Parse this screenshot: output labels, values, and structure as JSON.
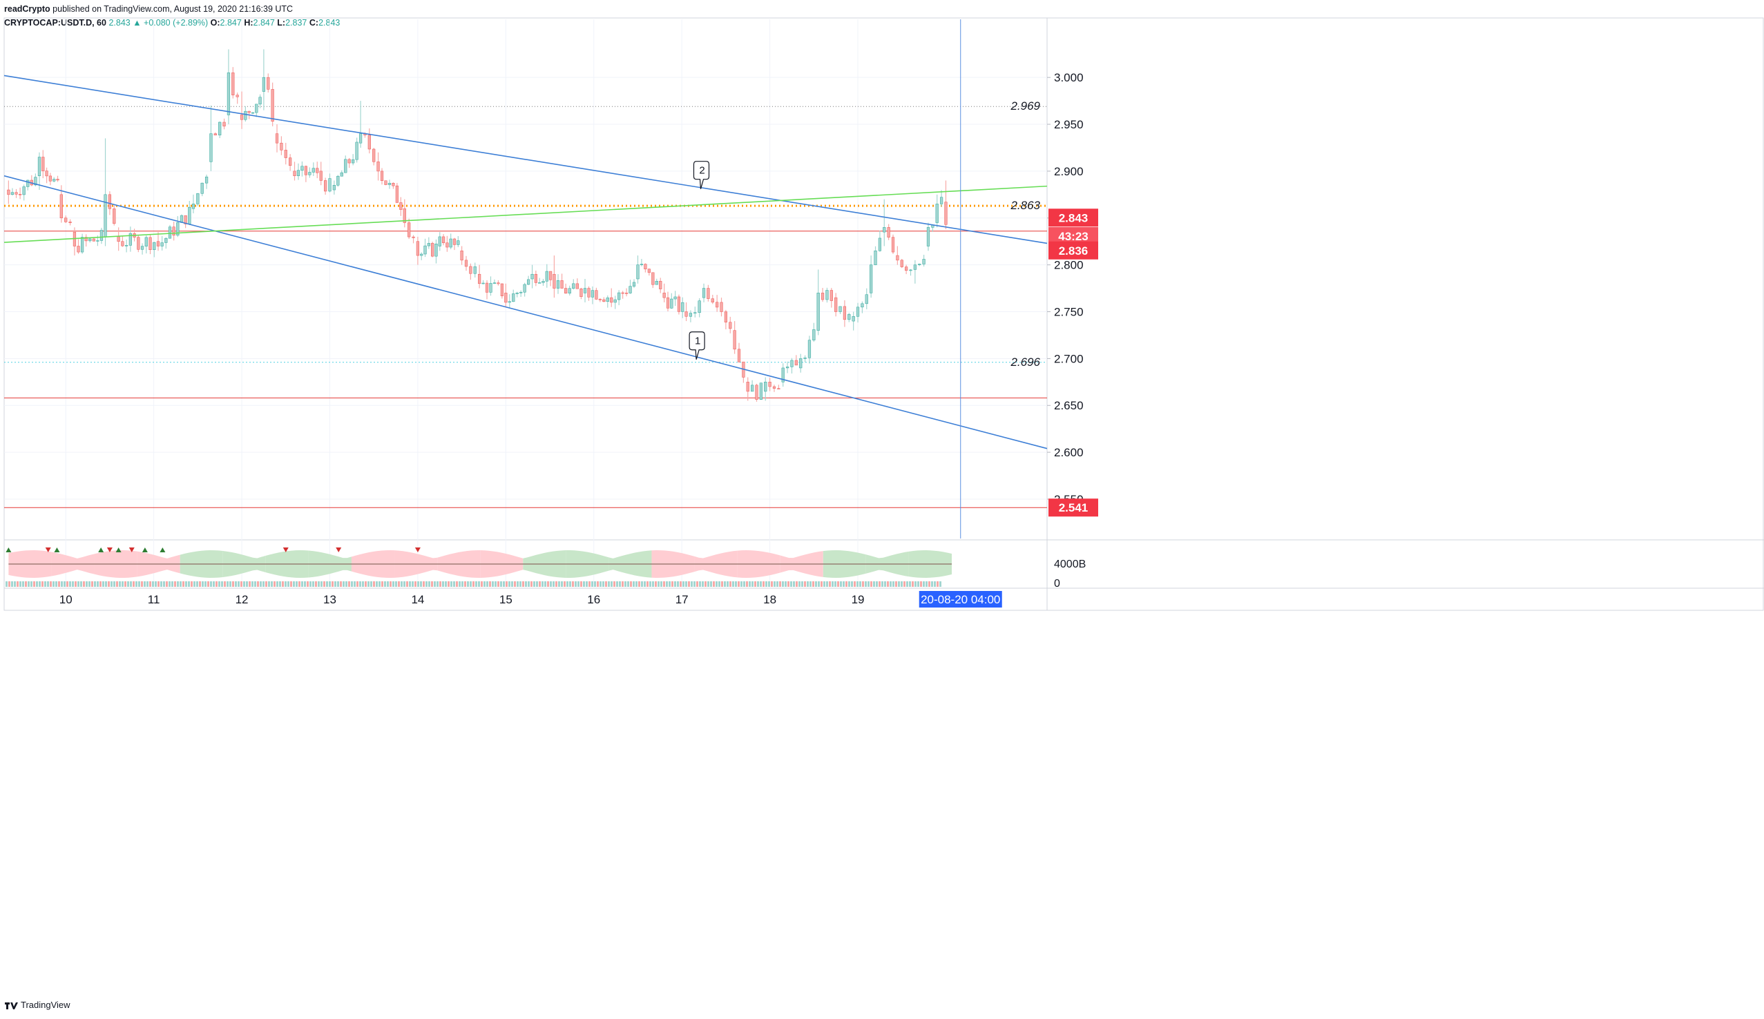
{
  "header": {
    "publisher_line_1": "readCrypto",
    "publisher_line_2": " published on TradingView.com, August 19, 2020 21:16:39 UTC",
    "symbol": "CRYPTOCAP:USDT.D, 60",
    "last": "2.843",
    "change": "▲ +0.080 (+2.89%)",
    "o_label": "O:",
    "o": "2.847",
    "h_label": "H:",
    "h": "2.847",
    "l_label": "L:",
    "l": "2.837",
    "c_label": "C:",
    "c": "2.843"
  },
  "footer": {
    "brand": "TradingView"
  },
  "colors": {
    "up": "#26a69a",
    "up_fill": "#a3d6d1",
    "down": "#ef5350",
    "down_fill": "#f7a9a7",
    "trend_blue": "#3d7fd6",
    "trend_green": "#66dd55",
    "red_line": "#e53935",
    "orange_dots": "#ff9800",
    "cyan_dots": "#4dd0e1",
    "grid": "#f0f3fa",
    "axis_text": "#131722",
    "label_red": "#f23645",
    "cursor_label": "#2962ff"
  },
  "chart_data": {
    "type": "candlestick",
    "title": "",
    "symbol": "CRYPTOCAP:USDT.D",
    "timeframe": "60",
    "ylim": [
      2.508,
      3.062
    ],
    "y_ticks": [
      2.55,
      2.6,
      2.65,
      2.7,
      2.75,
      2.8,
      2.85,
      2.9,
      2.95,
      3.0
    ],
    "y_tick_labels": [
      "2.550",
      "2.600",
      "2.650",
      "2.700",
      "2.750",
      "2.800",
      "2.850",
      "2.900",
      "2.950",
      "3.000"
    ],
    "x_ticks": [
      10,
      11,
      12,
      13,
      14,
      15,
      16,
      17,
      18,
      19
    ],
    "x_tick_labels": [
      "10",
      "11",
      "12",
      "13",
      "14",
      "15",
      "16",
      "17",
      "18",
      "19"
    ],
    "xlim": [
      9.3,
      21.15
    ],
    "cursor": {
      "x": 20.167,
      "label": "20-08-20   04:00"
    },
    "price_labels": [
      {
        "value": 2.843,
        "text": "2.843",
        "kind": "last"
      },
      {
        "value": 2.8395,
        "text": "43:23",
        "kind": "timer"
      },
      {
        "value": 2.836,
        "text": "2.836",
        "kind": "line"
      },
      {
        "value": 2.541,
        "text": "2.541",
        "kind": "line"
      }
    ],
    "horizontal_lines": [
      {
        "value": 2.969,
        "text": "2.969",
        "style": "dotted-gray"
      },
      {
        "value": 2.863,
        "text": "2.863",
        "style": "dotted-orange"
      },
      {
        "value": 2.836,
        "text": "",
        "style": "solid-red"
      },
      {
        "value": 2.696,
        "text": "2.696",
        "style": "dotted-cyan"
      },
      {
        "value": 2.658,
        "text": "",
        "style": "solid-red"
      },
      {
        "value": 2.541,
        "text": "",
        "style": "solid-red"
      }
    ],
    "trend_lines": [
      {
        "color": "blue",
        "x1": 9.3,
        "y1": 3.002,
        "x2": 21.15,
        "y2": 2.823
      },
      {
        "color": "blue",
        "x1": 9.3,
        "y1": 2.895,
        "x2": 21.15,
        "y2": 2.604
      },
      {
        "color": "green",
        "x1": 9.3,
        "y1": 2.824,
        "x2": 21.15,
        "y2": 2.884
      }
    ],
    "callouts": [
      {
        "text": "2",
        "x": 17.23,
        "y": 2.881
      },
      {
        "text": "1",
        "x": 17.18,
        "y": 2.699
      }
    ],
    "key_candles": [
      {
        "x": 9.35,
        "o": 2.88,
        "h": 2.89,
        "l": 2.865,
        "c": 2.875
      },
      {
        "x": 9.7,
        "o": 2.895,
        "h": 2.92,
        "l": 2.88,
        "c": 2.915
      },
      {
        "x": 9.95,
        "o": 2.875,
        "h": 2.885,
        "l": 2.845,
        "c": 2.85
      },
      {
        "x": 10.1,
        "o": 2.835,
        "h": 2.84,
        "l": 2.81,
        "c": 2.82
      },
      {
        "x": 10.45,
        "o": 2.83,
        "h": 2.935,
        "l": 2.82,
        "c": 2.875
      },
      {
        "x": 10.6,
        "o": 2.83,
        "h": 2.84,
        "l": 2.815,
        "c": 2.825
      },
      {
        "x": 11.05,
        "o": 2.825,
        "h": 2.835,
        "l": 2.815,
        "c": 2.82
      },
      {
        "x": 11.45,
        "o": 2.86,
        "h": 2.875,
        "l": 2.855,
        "c": 2.865
      },
      {
        "x": 11.65,
        "o": 2.91,
        "h": 2.97,
        "l": 2.9,
        "c": 2.94
      },
      {
        "x": 11.85,
        "o": 2.96,
        "h": 3.03,
        "l": 2.95,
        "c": 3.005
      },
      {
        "x": 12.0,
        "o": 2.96,
        "h": 2.985,
        "l": 2.945,
        "c": 2.955
      },
      {
        "x": 12.25,
        "o": 2.985,
        "h": 3.03,
        "l": 2.965,
        "c": 3.0
      },
      {
        "x": 12.4,
        "o": 2.94,
        "h": 2.95,
        "l": 2.92,
        "c": 2.93
      },
      {
        "x": 12.6,
        "o": 2.9,
        "h": 2.91,
        "l": 2.89,
        "c": 2.895
      },
      {
        "x": 12.9,
        "o": 2.9,
        "h": 2.91,
        "l": 2.885,
        "c": 2.89
      },
      {
        "x": 13.05,
        "o": 2.88,
        "h": 2.89,
        "l": 2.875,
        "c": 2.885
      },
      {
        "x": 13.35,
        "o": 2.93,
        "h": 2.975,
        "l": 2.925,
        "c": 2.94
      },
      {
        "x": 13.55,
        "o": 2.91,
        "h": 2.92,
        "l": 2.89,
        "c": 2.9
      },
      {
        "x": 13.85,
        "o": 2.86,
        "h": 2.87,
        "l": 2.84,
        "c": 2.845
      },
      {
        "x": 14.0,
        "o": 2.825,
        "h": 2.83,
        "l": 2.8,
        "c": 2.81
      },
      {
        "x": 14.25,
        "o": 2.82,
        "h": 2.835,
        "l": 2.815,
        "c": 2.83
      },
      {
        "x": 14.5,
        "o": 2.815,
        "h": 2.82,
        "l": 2.8,
        "c": 2.805
      },
      {
        "x": 14.7,
        "o": 2.79,
        "h": 2.8,
        "l": 2.775,
        "c": 2.78
      },
      {
        "x": 15.0,
        "o": 2.77,
        "h": 2.78,
        "l": 2.755,
        "c": 2.76
      },
      {
        "x": 15.3,
        "o": 2.785,
        "h": 2.8,
        "l": 2.775,
        "c": 2.79
      },
      {
        "x": 15.55,
        "o": 2.79,
        "h": 2.81,
        "l": 2.765,
        "c": 2.775
      },
      {
        "x": 15.9,
        "o": 2.77,
        "h": 2.785,
        "l": 2.76,
        "c": 2.775
      },
      {
        "x": 16.2,
        "o": 2.765,
        "h": 2.775,
        "l": 2.755,
        "c": 2.76
      },
      {
        "x": 16.5,
        "o": 2.785,
        "h": 2.81,
        "l": 2.78,
        "c": 2.8
      },
      {
        "x": 16.8,
        "o": 2.77,
        "h": 2.78,
        "l": 2.76,
        "c": 2.765
      },
      {
        "x": 17.05,
        "o": 2.75,
        "h": 2.76,
        "l": 2.74,
        "c": 2.745
      },
      {
        "x": 17.25,
        "o": 2.765,
        "h": 2.78,
        "l": 2.76,
        "c": 2.775
      },
      {
        "x": 17.45,
        "o": 2.76,
        "h": 2.765,
        "l": 2.745,
        "c": 2.75
      },
      {
        "x": 17.6,
        "o": 2.73,
        "h": 2.74,
        "l": 2.705,
        "c": 2.71
      },
      {
        "x": 17.75,
        "o": 2.675,
        "h": 2.68,
        "l": 2.655,
        "c": 2.665
      },
      {
        "x": 17.95,
        "o": 2.665,
        "h": 2.68,
        "l": 2.655,
        "c": 2.675
      },
      {
        "x": 18.15,
        "o": 2.675,
        "h": 2.695,
        "l": 2.67,
        "c": 2.69
      },
      {
        "x": 18.35,
        "o": 2.69,
        "h": 2.705,
        "l": 2.685,
        "c": 2.7
      },
      {
        "x": 18.55,
        "o": 2.73,
        "h": 2.795,
        "l": 2.725,
        "c": 2.77
      },
      {
        "x": 18.75,
        "o": 2.765,
        "h": 2.77,
        "l": 2.745,
        "c": 2.75
      },
      {
        "x": 18.95,
        "o": 2.74,
        "h": 2.75,
        "l": 2.73,
        "c": 2.745
      },
      {
        "x": 19.15,
        "o": 2.77,
        "h": 2.81,
        "l": 2.765,
        "c": 2.8
      },
      {
        "x": 19.3,
        "o": 2.835,
        "h": 2.87,
        "l": 2.82,
        "c": 2.84
      },
      {
        "x": 19.45,
        "o": 2.81,
        "h": 2.82,
        "l": 2.8,
        "c": 2.805
      },
      {
        "x": 19.65,
        "o": 2.795,
        "h": 2.805,
        "l": 2.78,
        "c": 2.8
      },
      {
        "x": 19.8,
        "o": 2.82,
        "h": 2.845,
        "l": 2.815,
        "c": 2.84
      },
      {
        "x": 19.9,
        "o": 2.845,
        "h": 2.875,
        "l": 2.84,
        "c": 2.865
      },
      {
        "x": 20.0,
        "o": 2.867,
        "h": 2.89,
        "l": 2.838,
        "c": 2.843
      }
    ],
    "indicator": {
      "y_tick_labels": [
        "4000B",
        "0"
      ],
      "up_markers_x": [
        9.35,
        9.9,
        10.4,
        10.6,
        10.9,
        11.1
      ],
      "down_markers_x": [
        9.8,
        10.5,
        10.75,
        12.5,
        13.1,
        14.0
      ]
    }
  }
}
